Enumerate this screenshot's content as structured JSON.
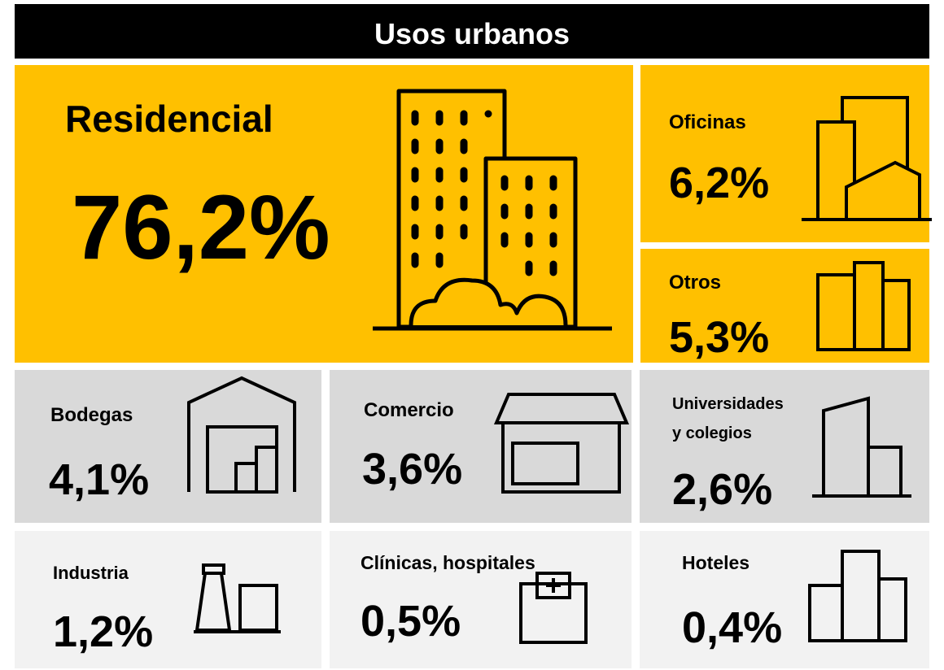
{
  "title": "Usos urbanos",
  "tiles": [
    {
      "label": [
        "Residencial"
      ],
      "value": "76,2%"
    },
    {
      "label": [
        "Oficinas"
      ],
      "value": "6,2%"
    },
    {
      "label": [
        "Otros"
      ],
      "value": "5,3%"
    },
    {
      "label": [
        "Bodegas"
      ],
      "value": "4,1%"
    },
    {
      "label": [
        "Comercio"
      ],
      "value": "3,6%"
    },
    {
      "label": [
        "Universidades",
        "y colegios"
      ],
      "value": "2,6%"
    },
    {
      "label": [
        "Industria"
      ],
      "value": "1,2%"
    },
    {
      "label": [
        "Clínicas, hospitales"
      ],
      "value": "0,5%"
    },
    {
      "label": [
        "Hoteles"
      ],
      "value": "0,4%"
    }
  ]
}
